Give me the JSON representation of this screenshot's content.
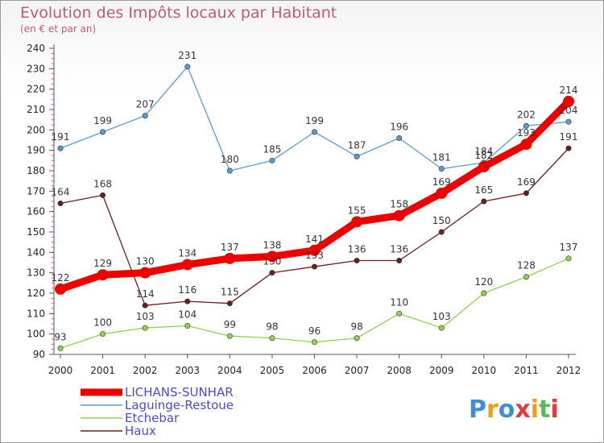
{
  "chart_data": {
    "type": "line",
    "title": "Evolution des Impôts locaux par Habitant",
    "subtitle": "(en € et par an)",
    "xlabel": "",
    "ylabel": "",
    "categories": [
      "2000",
      "2001",
      "2002",
      "2003",
      "2004",
      "2005",
      "2006",
      "2007",
      "2008",
      "2009",
      "2010",
      "2011",
      "2012"
    ],
    "yticks": [
      90,
      100,
      110,
      120,
      130,
      140,
      150,
      160,
      170,
      180,
      190,
      200,
      210,
      220,
      230,
      240
    ],
    "ylim": [
      90,
      240
    ],
    "series": [
      {
        "name": "LICHANS-SUNHAR",
        "color": "#ee0000",
        "width": 9,
        "marker": 7,
        "values": [
          122,
          129,
          130,
          134,
          137,
          138,
          141,
          155,
          158,
          169,
          182,
          193,
          214
        ]
      },
      {
        "name": "Laguinge-Restoue",
        "color": "#5b9bd5",
        "width": 1.3,
        "marker": 3.2,
        "values": [
          191,
          199,
          207,
          231,
          180,
          185,
          199,
          187,
          196,
          181,
          184,
          202,
          204
        ]
      },
      {
        "name": "Etchebar",
        "color": "#92d050",
        "width": 1.3,
        "marker": 3.2,
        "values": [
          93,
          100,
          103,
          104,
          99,
          98,
          96,
          98,
          110,
          103,
          120,
          128,
          137
        ]
      },
      {
        "name": "Haux",
        "color": "#6b1e1e",
        "width": 1.3,
        "marker": 3.2,
        "values": [
          164,
          168,
          114,
          116,
          115,
          130,
          133,
          136,
          136,
          150,
          165,
          169,
          191
        ]
      }
    ],
    "legend_position": "bottom-left",
    "grid": false
  },
  "logo": {
    "text": "Proxiti",
    "letters": [
      "P",
      "r",
      "o",
      "x",
      "i",
      "t",
      "i"
    ],
    "colors": [
      "#3f8fd8",
      "#f39c12",
      "#3f8fd8",
      "#e23c3c",
      "#f39c12",
      "#5cb85c",
      "#e23c3c"
    ]
  }
}
